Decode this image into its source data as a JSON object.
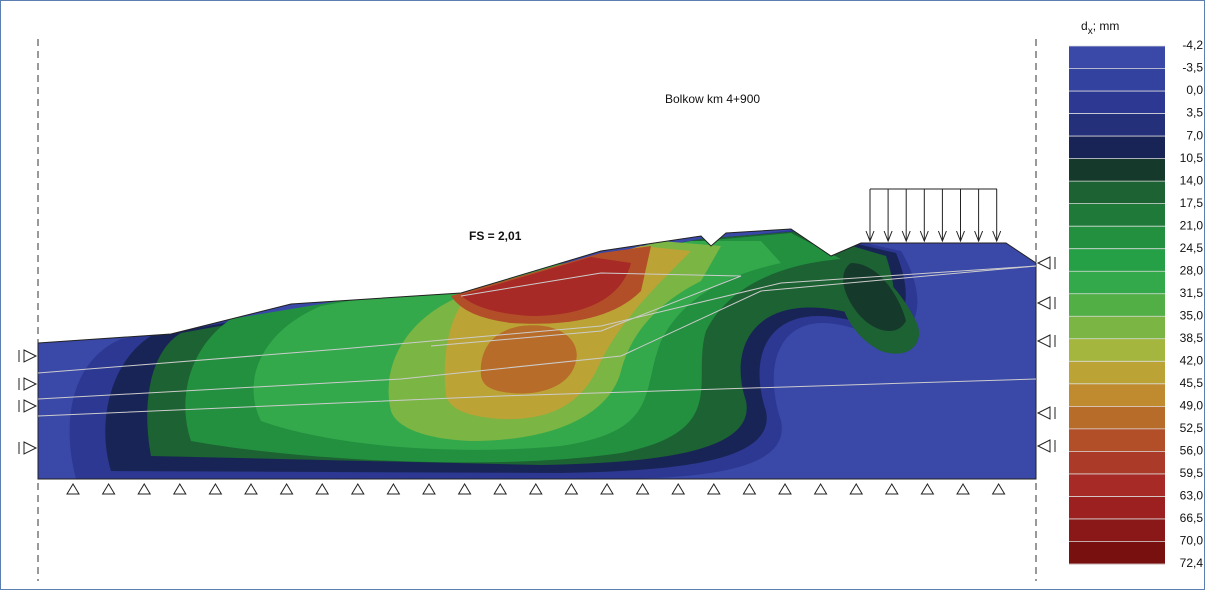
{
  "header": {
    "title": "Bolkow  km 4+900",
    "safety_factor": "FS = 2,01"
  },
  "legend": {
    "title": {
      "symbol": "d",
      "subscript": "x",
      "unit": ";  mm"
    },
    "labels": [
      "-4,2",
      "-3,5",
      "0,0",
      "3,5",
      "7,0",
      "10,5",
      "14,0",
      "17,5",
      "21,0",
      "24,5",
      "28,0",
      "31,5",
      "35,0",
      "38,5",
      "42,0",
      "45,5",
      "49,0",
      "52,5",
      "56,0",
      "59,5",
      "63,0",
      "66,5",
      "70,0",
      "72,4"
    ],
    "colors": [
      "#3a48a8",
      "#34429f",
      "#2c3892",
      "#243079",
      "#192456",
      "#153a2c",
      "#1c6232",
      "#1f7a3a",
      "#22903f",
      "#26a046",
      "#33a94b",
      "#52af46",
      "#7bb544",
      "#a4b63e",
      "#bba435",
      "#c08a2e",
      "#b86c2a",
      "#b24f28",
      "#ac3a28",
      "#a82a26",
      "#9c2020",
      "#8a1818",
      "#781010"
    ]
  }
}
